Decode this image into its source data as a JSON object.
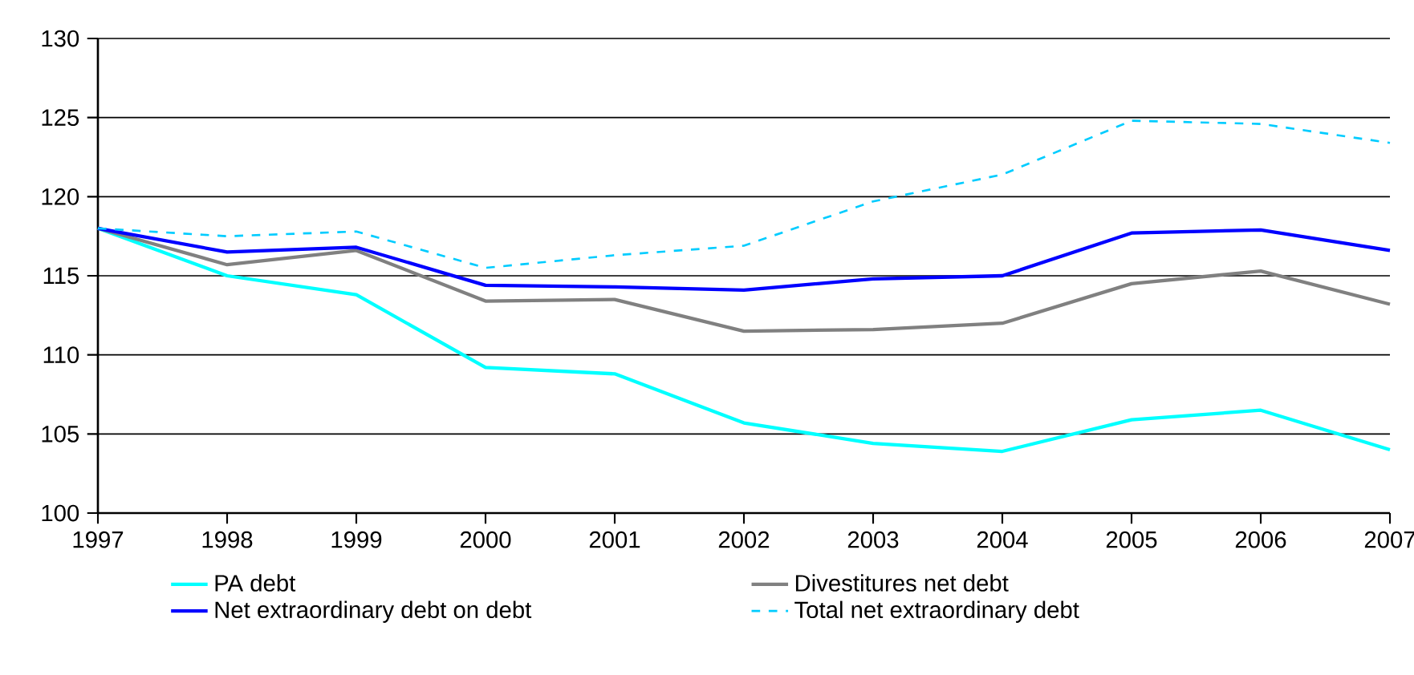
{
  "chart_data": {
    "type": "line",
    "x": [
      1997,
      1998,
      1999,
      2000,
      2001,
      2002,
      2003,
      2004,
      2005,
      2006,
      2007
    ],
    "series": [
      {
        "name": "PA debt",
        "color": "#00ffff",
        "line_style": "solid",
        "values": [
          118,
          115,
          113.8,
          109.2,
          108.8,
          105.7,
          104.4,
          103.9,
          105.9,
          106.5,
          104
        ]
      },
      {
        "name": "Divestitures net debt",
        "color": "#808080",
        "line_style": "solid",
        "values": [
          118,
          115.7,
          116.6,
          113.4,
          113.5,
          111.5,
          111.6,
          112,
          114.5,
          115.3,
          113.2
        ]
      },
      {
        "name": "Net extraordinary debt on debt",
        "color": "#0000ff",
        "line_style": "solid",
        "values": [
          118,
          116.5,
          116.8,
          114.4,
          114.3,
          114.1,
          114.8,
          115,
          117.7,
          117.9,
          116.6
        ]
      },
      {
        "name": "Total net extraordinary debt",
        "color": "#00ccff",
        "line_style": "dashed",
        "values": [
          118,
          117.5,
          117.8,
          115.5,
          116.3,
          116.9,
          119.7,
          121.4,
          124.8,
          124.6,
          123.4
        ]
      }
    ],
    "xlim": [
      1997,
      2007
    ],
    "ylim": [
      100,
      130
    ],
    "xticks": [
      1997,
      1998,
      1999,
      2000,
      2001,
      2002,
      2003,
      2004,
      2005,
      2006,
      2007
    ],
    "yticks": [
      100,
      105,
      110,
      115,
      120,
      125,
      130
    ],
    "grid": "y",
    "legend": "bottom",
    "marker": "none"
  }
}
